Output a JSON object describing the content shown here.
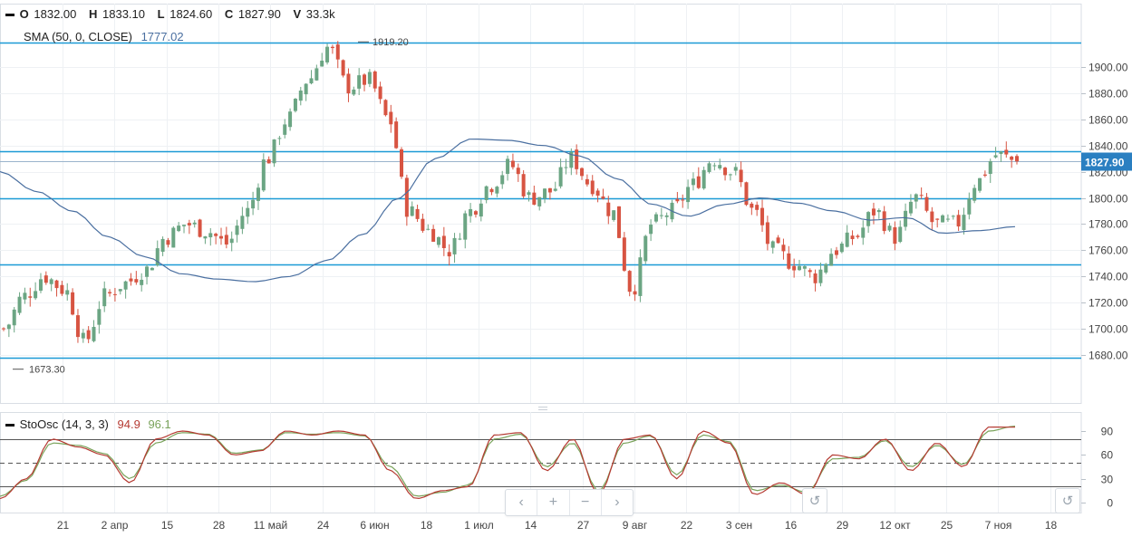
{
  "legend": {
    "ohlc": [
      {
        "k": "O",
        "v": "1832.00"
      },
      {
        "k": "H",
        "v": "1833.10"
      },
      {
        "k": "L",
        "v": "1824.60"
      },
      {
        "k": "C",
        "v": "1827.90"
      },
      {
        "k": "V",
        "v": "33.3k"
      }
    ],
    "sma_label": "SMA (50, 0, CLOSE)",
    "sma_value": "1777.02",
    "osc_label": "StoOsc (14, 3, 3)",
    "osc_k": "94.9",
    "osc_d": "96.1"
  },
  "annotations": {
    "high_label": "1919.20",
    "low_label": "1673.30"
  },
  "last_price_label": "1827.90",
  "nav": {
    "prev": "‹",
    "zoom_in": "+",
    "zoom_out": "−",
    "next": "›",
    "reset": "↺"
  },
  "colors": {
    "up": "#6ba583",
    "down": "#d75442",
    "sma": "#4a6fa0",
    "hline": "#1b9ad6",
    "osc_k": "#b53a32",
    "osc_d": "#7aa35b",
    "price_badge": "#2a7fc1"
  },
  "chart_data": [
    {
      "type": "candlestick",
      "ylim": [
        1655,
        1935
      ],
      "y_ticks": [
        1680,
        1700,
        1720,
        1740,
        1760,
        1780,
        1800,
        1820,
        1840,
        1860,
        1880,
        1900
      ],
      "x_tick_labels": [
        "21",
        "2 апр",
        "15",
        "28",
        "11 май",
        "24",
        "6 июн",
        "18",
        "1 июл",
        "14",
        "27",
        "9 авг",
        "22",
        "3 сен",
        "16",
        "29",
        "12 окт",
        "25",
        "7 ноя",
        "18"
      ],
      "horizontal_levels": [
        1919,
        1836,
        1800,
        1749,
        1678
      ],
      "last_price": 1827.9,
      "high": 1919.2,
      "low": 1673.3,
      "sma_anchor_values": [
        1820,
        1805,
        1790,
        1770,
        1755,
        1742,
        1738,
        1736,
        1740,
        1752,
        1772,
        1800,
        1830,
        1845,
        1844,
        1840,
        1832,
        1815,
        1795,
        1786,
        1795,
        1800,
        1796,
        1790,
        1783,
        1785,
        1773,
        1775,
        1778
      ],
      "close_anchor_values": [
        1700,
        1725,
        1740,
        1730,
        1690,
        1725,
        1735,
        1745,
        1770,
        1780,
        1775,
        1765,
        1790,
        1830,
        1860,
        1890,
        1915,
        1885,
        1890,
        1860,
        1790,
        1775,
        1760,
        1790,
        1810,
        1825,
        1800,
        1805,
        1830,
        1810,
        1790,
        1730,
        1780,
        1790,
        1810,
        1830,
        1820,
        1790,
        1760,
        1750,
        1740,
        1760,
        1770,
        1790,
        1770,
        1800,
        1780,
        1780,
        1812,
        1833,
        1828
      ]
    },
    {
      "type": "line",
      "name": "StoOsc",
      "ylim": [
        -10,
        105
      ],
      "y_ticks": [
        0,
        30,
        60,
        90
      ],
      "levels": [
        80,
        50,
        20
      ],
      "k_anchor_values": [
        5,
        30,
        80,
        70,
        60,
        25,
        80,
        90,
        85,
        60,
        65,
        90,
        85,
        90,
        85,
        40,
        5,
        15,
        20,
        85,
        88,
        40,
        80,
        10,
        80,
        85,
        30,
        90,
        75,
        10,
        25,
        10,
        60,
        55,
        80,
        40,
        75,
        45,
        95,
        94.9
      ],
      "d_anchor_values": [
        8,
        28,
        75,
        72,
        62,
        30,
        75,
        88,
        86,
        62,
        66,
        88,
        86,
        88,
        84,
        45,
        8,
        13,
        22,
        80,
        86,
        45,
        75,
        15,
        75,
        84,
        35,
        85,
        77,
        15,
        22,
        13,
        55,
        57,
        78,
        45,
        72,
        48,
        90,
        96.1
      ]
    }
  ]
}
